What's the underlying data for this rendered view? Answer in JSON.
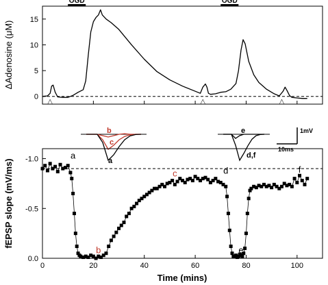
{
  "chart_data": [
    {
      "type": "line",
      "title": "",
      "ylabel": "ΔAdenosine (μM)",
      "xlabel": "",
      "xlim": [
        0,
        110
      ],
      "ylim": [
        -1.5,
        17.5
      ],
      "xticks": [
        0,
        20,
        40,
        60,
        80,
        100
      ],
      "yticks": [
        0,
        5,
        10,
        15
      ],
      "xtick_labels": [
        "0",
        "20",
        "40",
        "60",
        "80",
        "100"
      ],
      "ytick_labels": [
        "0",
        "5",
        "10",
        "15"
      ],
      "baseline_dashed": 0,
      "bars": [
        {
          "label": "OGD",
          "x_start": 10,
          "x_end": 17
        },
        {
          "label": "OGD",
          "x_start": 70,
          "x_end": 77
        }
      ],
      "markers": [
        {
          "symbol": "△",
          "x": 3
        },
        {
          "symbol": "△",
          "x": 63
        },
        {
          "symbol": "△",
          "x": 94
        }
      ],
      "series": [
        {
          "x": [
            0,
            2,
            3,
            3.6,
            4.2,
            5,
            6,
            8,
            10,
            12,
            14,
            16,
            17,
            18,
            19,
            20,
            21,
            22,
            22.8,
            23.5,
            25,
            27,
            30,
            35,
            40,
            45,
            50,
            55,
            60,
            62,
            63,
            64,
            64.6,
            65.2,
            66,
            68,
            70,
            72,
            74,
            76,
            77,
            78,
            78.8,
            79.6,
            81,
            83,
            85,
            88,
            91,
            93,
            94.5,
            95.3,
            96,
            97,
            98,
            100,
            102,
            104
          ],
          "values": [
            0,
            0.1,
            0.6,
            2.0,
            2.2,
            0.8,
            -0.1,
            -0.2,
            -0.2,
            0.2,
            0.8,
            1.3,
            3.0,
            8.0,
            12.5,
            14.5,
            15.3,
            15.8,
            16.8,
            15.8,
            15.0,
            14.3,
            13.0,
            10.0,
            7.2,
            4.8,
            3.2,
            2.0,
            1.0,
            0.6,
            1.8,
            2.4,
            1.8,
            0.6,
            0.4,
            0.5,
            0.8,
            0.9,
            1.4,
            2.5,
            5.0,
            9.0,
            11.0,
            10.2,
            6.8,
            4.2,
            2.7,
            1.4,
            0.5,
            0.1,
            1.0,
            1.8,
            1.2,
            0.2,
            -0.2,
            -0.3,
            -0.4,
            -0.4
          ]
        }
      ]
    },
    {
      "type": "scatter",
      "title": "",
      "ylabel": "fEPSP slope (mV/ms)",
      "xlabel": "Time (mins)",
      "xlim": [
        0,
        110
      ],
      "ylim": [
        0.0,
        -1.1
      ],
      "xticks": [
        0,
        20,
        40,
        60,
        80,
        100
      ],
      "yticks": [
        -1.0,
        -0.5,
        0.0
      ],
      "xtick_labels": [
        "0",
        "20",
        "40",
        "60",
        "80",
        "100"
      ],
      "ytick_labels": [
        "-1.0",
        "-0.5",
        "0.0"
      ],
      "reference_line_y": -0.9,
      "annotations": [
        {
          "text": "a",
          "x": 12,
          "y": -1.0,
          "color": "#000000"
        },
        {
          "text": "b",
          "x": 22,
          "y": -0.05,
          "color": "#c0392b"
        },
        {
          "text": "c",
          "x": 52,
          "y": -0.82,
          "color": "#c0392b"
        },
        {
          "text": "d",
          "x": 72,
          "y": -0.85,
          "color": "#000000"
        },
        {
          "text": "e",
          "x": 78,
          "y": -0.05,
          "color": "#000000"
        },
        {
          "text": "f",
          "x": 101,
          "y": -0.86,
          "color": "#000000"
        }
      ],
      "series": [
        {
          "x": [
            0,
            1,
            2,
            3,
            4,
            5,
            6,
            7,
            8,
            9,
            10,
            11,
            11.5,
            12,
            12.5,
            13,
            13.5,
            14,
            14.5,
            15,
            16,
            17,
            18,
            19,
            20,
            21,
            22,
            23,
            24,
            25,
            26,
            27,
            28,
            29,
            30,
            31,
            32,
            33,
            34,
            35,
            36,
            37,
            38,
            39,
            40,
            41,
            42,
            43,
            44,
            45,
            46,
            47,
            48,
            49,
            50,
            51,
            52,
            53,
            54,
            55,
            56,
            57,
            58,
            59,
            60,
            61,
            62,
            63,
            64,
            65,
            66,
            67,
            68,
            69,
            70,
            71,
            72,
            72.5,
            73,
            73.5,
            74,
            74.5,
            75,
            75.5,
            76,
            76.5,
            77,
            77.5,
            78,
            78.5,
            79,
            79.5,
            80,
            80.5,
            81,
            81.5,
            82,
            83,
            84,
            85,
            86,
            87,
            88,
            89,
            90,
            91,
            92,
            93,
            94,
            95,
            96,
            97,
            98,
            99,
            100,
            101,
            102,
            103,
            104
          ],
          "values": [
            -0.9,
            -0.93,
            -0.88,
            -0.95,
            -0.9,
            -0.92,
            -0.87,
            -0.94,
            -0.9,
            -0.91,
            -0.93,
            -0.86,
            -0.8,
            -0.65,
            -0.45,
            -0.25,
            -0.12,
            -0.05,
            -0.03,
            -0.02,
            -0.01,
            -0.02,
            -0.01,
            -0.03,
            -0.02,
            0.0,
            -0.02,
            -0.01,
            -0.03,
            -0.05,
            -0.12,
            -0.18,
            -0.22,
            -0.26,
            -0.3,
            -0.33,
            -0.36,
            -0.42,
            -0.45,
            -0.5,
            -0.52,
            -0.55,
            -0.58,
            -0.6,
            -0.62,
            -0.64,
            -0.66,
            -0.68,
            -0.7,
            -0.7,
            -0.72,
            -0.74,
            -0.72,
            -0.75,
            -0.76,
            -0.78,
            -0.74,
            -0.77,
            -0.8,
            -0.78,
            -0.76,
            -0.79,
            -0.8,
            -0.78,
            -0.82,
            -0.8,
            -0.78,
            -0.8,
            -0.81,
            -0.79,
            -0.76,
            -0.78,
            -0.8,
            -0.77,
            -0.76,
            -0.74,
            -0.72,
            -0.62,
            -0.45,
            -0.28,
            -0.12,
            -0.05,
            -0.02,
            -0.02,
            -0.03,
            -0.01,
            -0.02,
            -0.04,
            -0.03,
            -0.02,
            -0.05,
            -0.1,
            -0.25,
            -0.45,
            -0.6,
            -0.68,
            -0.7,
            -0.72,
            -0.71,
            -0.73,
            -0.72,
            -0.74,
            -0.72,
            -0.73,
            -0.71,
            -0.74,
            -0.72,
            -0.7,
            -0.72,
            -0.75,
            -0.73,
            -0.74,
            -0.72,
            -0.8,
            -0.76,
            -0.83,
            -0.78,
            -0.74,
            -0.8
          ]
        }
      ]
    },
    {
      "type": "line",
      "title": "",
      "inset": "left traces",
      "legend_labels": [
        "b",
        "c",
        "a"
      ],
      "label_colors": [
        "#c0392b",
        "#c0392b",
        "#000000"
      ],
      "series": [
        {
          "name": "b",
          "color": "#c0392b",
          "values": [
            0,
            0,
            0,
            0.05,
            0.1,
            0.05,
            0,
            -0.02,
            0,
            0,
            0
          ]
        },
        {
          "name": "c",
          "color": "#c0392b",
          "values": [
            0,
            0,
            0,
            0.2,
            0.55,
            0.4,
            0.2,
            0.08,
            0.02,
            0,
            0
          ]
        },
        {
          "name": "a",
          "color": "#000000",
          "values": [
            0,
            0,
            0,
            0.3,
            0.95,
            0.75,
            0.45,
            0.2,
            0.06,
            0.01,
            0
          ]
        }
      ]
    },
    {
      "type": "line",
      "title": "",
      "inset": "right traces",
      "legend_labels": [
        "e",
        "d,f"
      ],
      "label_colors": [
        "#000000",
        "#000000"
      ],
      "scale_bar": {
        "vertical_label": "1mV",
        "horizontal_label": "10ms"
      },
      "series": [
        {
          "name": "e",
          "color": "#000000",
          "values": [
            0,
            0,
            0,
            0.15,
            0.05,
            0,
            0,
            0,
            0,
            0,
            0
          ]
        },
        {
          "name": "d,f",
          "color": "#000000",
          "values": [
            0,
            0,
            0,
            0.4,
            0.95,
            0.7,
            0.42,
            0.18,
            0.05,
            0.01,
            0
          ]
        }
      ]
    }
  ]
}
